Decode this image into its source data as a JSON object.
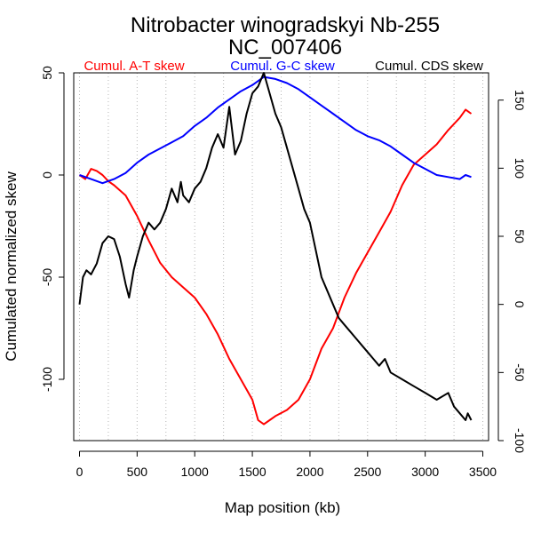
{
  "chart_data": {
    "type": "line",
    "title": [
      "Nitrobacter winogradskyi Nb-255",
      "NC_007406"
    ],
    "xlabel": "Map position (kb)",
    "ylabel": "Cumulated normalized skew",
    "xlim": [
      -50,
      3550
    ],
    "ylim_left": [
      -130,
      50
    ],
    "ylim_right": [
      -100,
      170
    ],
    "x_ticks": [
      0,
      500,
      1000,
      1500,
      2000,
      2500,
      3000,
      3500
    ],
    "y_ticks_left": [
      50,
      0,
      -50,
      -100
    ],
    "y_ticks_right": [
      150,
      100,
      50,
      0,
      -50,
      -100
    ],
    "vgrid_x": [
      0,
      250,
      500,
      750,
      1000,
      1250,
      1500,
      1750,
      2000,
      2250,
      2500,
      2750,
      3000,
      3250,
      3500
    ],
    "series": [
      {
        "name": "Cumul. A-T skew",
        "axis": "left",
        "color": "#ff0000",
        "x": [
          0,
          50,
          100,
          150,
          200,
          250,
          300,
          400,
          500,
          600,
          700,
          800,
          900,
          1000,
          1100,
          1200,
          1300,
          1400,
          1500,
          1550,
          1600,
          1650,
          1700,
          1800,
          1900,
          2000,
          2100,
          2200,
          2300,
          2400,
          2500,
          2600,
          2700,
          2800,
          2900,
          3000,
          3100,
          3200,
          3300,
          3350,
          3400
        ],
        "y": [
          0,
          -2,
          3,
          2,
          0,
          -3,
          -5,
          -10,
          -20,
          -32,
          -43,
          -50,
          -55,
          -60,
          -68,
          -78,
          -90,
          -100,
          -110,
          -120,
          -122,
          -120,
          -118,
          -115,
          -110,
          -100,
          -85,
          -75,
          -60,
          -48,
          -38,
          -28,
          -18,
          -5,
          5,
          10,
          15,
          22,
          28,
          32,
          30
        ]
      },
      {
        "name": "Cumul. G-C skew",
        "axis": "left",
        "color": "#0000ff",
        "x": [
          0,
          100,
          200,
          300,
          400,
          500,
          600,
          700,
          800,
          900,
          1000,
          1100,
          1200,
          1300,
          1400,
          1500,
          1600,
          1700,
          1800,
          1900,
          2000,
          2100,
          2200,
          2300,
          2400,
          2500,
          2600,
          2700,
          2800,
          2900,
          3000,
          3100,
          3200,
          3300,
          3350,
          3400
        ],
        "y": [
          0,
          -2,
          -4,
          -2,
          1,
          6,
          10,
          13,
          16,
          19,
          24,
          28,
          33,
          37,
          41,
          44,
          48,
          47,
          45,
          42,
          38,
          34,
          30,
          26,
          22,
          19,
          17,
          14,
          10,
          6,
          3,
          0,
          -1,
          -2,
          0,
          -1
        ]
      },
      {
        "name": "Cumul. CDS skew",
        "axis": "right",
        "color": "#000000",
        "x": [
          0,
          30,
          60,
          100,
          150,
          200,
          250,
          300,
          350,
          400,
          430,
          470,
          500,
          550,
          600,
          650,
          700,
          750,
          800,
          850,
          880,
          900,
          950,
          1000,
          1050,
          1100,
          1150,
          1200,
          1250,
          1300,
          1350,
          1400,
          1450,
          1500,
          1550,
          1600,
          1650,
          1700,
          1750,
          1800,
          1850,
          1900,
          1950,
          2000,
          2050,
          2100,
          2150,
          2200,
          2250,
          2300,
          2350,
          2400,
          2450,
          2500,
          2550,
          2600,
          2650,
          2700,
          2800,
          2900,
          3000,
          3100,
          3200,
          3250,
          3300,
          3350,
          3370,
          3400
        ],
        "y": [
          0,
          20,
          25,
          22,
          30,
          45,
          50,
          48,
          35,
          15,
          5,
          25,
          35,
          50,
          60,
          55,
          60,
          70,
          85,
          75,
          90,
          80,
          75,
          85,
          90,
          100,
          115,
          125,
          115,
          145,
          110,
          120,
          140,
          155,
          160,
          170,
          155,
          140,
          130,
          115,
          100,
          85,
          70,
          60,
          40,
          20,
          10,
          0,
          -10,
          -15,
          -20,
          -25,
          -30,
          -35,
          -40,
          -45,
          -40,
          -50,
          -55,
          -60,
          -65,
          -70,
          -65,
          -75,
          -80,
          -85,
          -80,
          -85
        ]
      }
    ]
  }
}
